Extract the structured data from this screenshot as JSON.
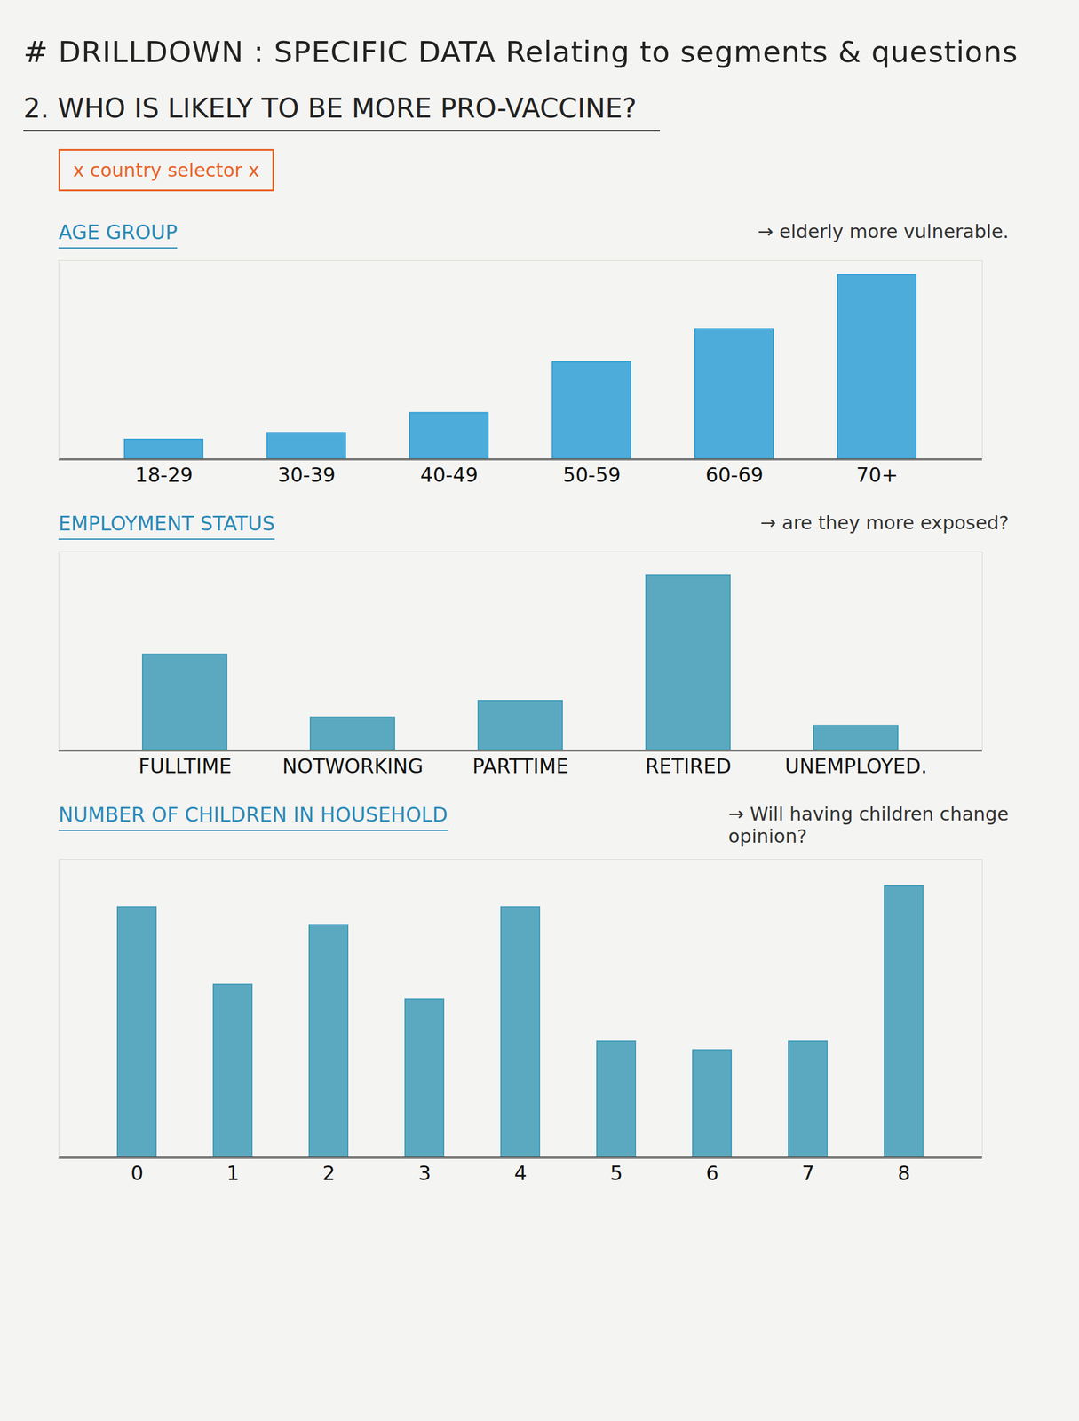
{
  "page": {
    "title": "# DRILLDOWN : SPECIFIC DATA Relating to segments & questions",
    "heading": "2. WHO IS LIKELY TO BE MORE PRO-VACCINE?",
    "selector": "x country selector x"
  },
  "chart_data": [
    {
      "type": "bar",
      "title": "AGE GROUP",
      "annotation": "→ elderly more vulnerable.",
      "categories": [
        "18-29",
        "30-39",
        "40-49",
        "50-59",
        "60-69",
        "70+"
      ],
      "values": [
        18,
        24,
        42,
        88,
        118,
        167
      ],
      "color": "#2f9fd6",
      "ylim": [
        0,
        180
      ],
      "yticks": [],
      "tick_labels": "x"
    },
    {
      "type": "bar",
      "title": "EMPLOYMENT STATUS",
      "annotation": "→ are they more exposed?",
      "categories": [
        "FULLTIME",
        "NOTWORKING",
        "PARTTIME",
        "RETIRED",
        "UNEMPLOYED."
      ],
      "values": [
        58,
        20,
        30,
        106,
        15
      ],
      "color": "#3f9bb8",
      "ylim": [
        0,
        120
      ],
      "yticks": [],
      "tick_labels": "x"
    },
    {
      "type": "bar",
      "title": "NUMBER OF CHILDREN IN HOUSEHOLD",
      "annotation": "→ Will having children change opinion?",
      "categories": [
        "0",
        "1",
        "2",
        "3",
        "4",
        "5",
        "6",
        "7",
        "8"
      ],
      "values": [
        84,
        58,
        78,
        53,
        84,
        39,
        36,
        39,
        91
      ],
      "color": "#3f9bb8",
      "ylim": [
        0,
        100
      ],
      "yticks": [],
      "tick_labels": "x"
    }
  ]
}
